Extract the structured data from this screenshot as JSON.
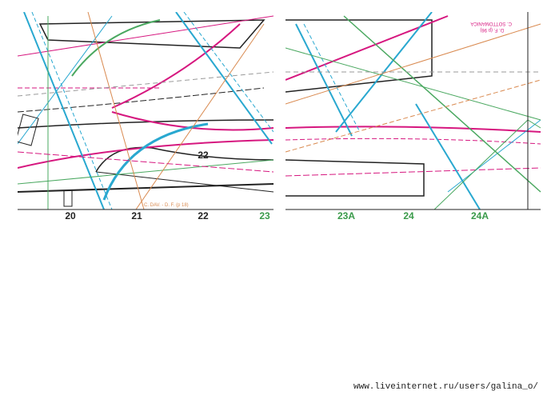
{
  "sheet": {
    "left_labels": [
      "20",
      "21",
      "22",
      "23"
    ],
    "right_labels": [
      "23A",
      "24",
      "24A"
    ],
    "inner_label": "22",
    "notes": [
      "C. DAV. - D. F. (p 18)",
      "C. SOTTOMANICA",
      "D. F. (p 96)"
    ],
    "footer_url": "www.liveinternet.ru/users/galina_o/"
  }
}
